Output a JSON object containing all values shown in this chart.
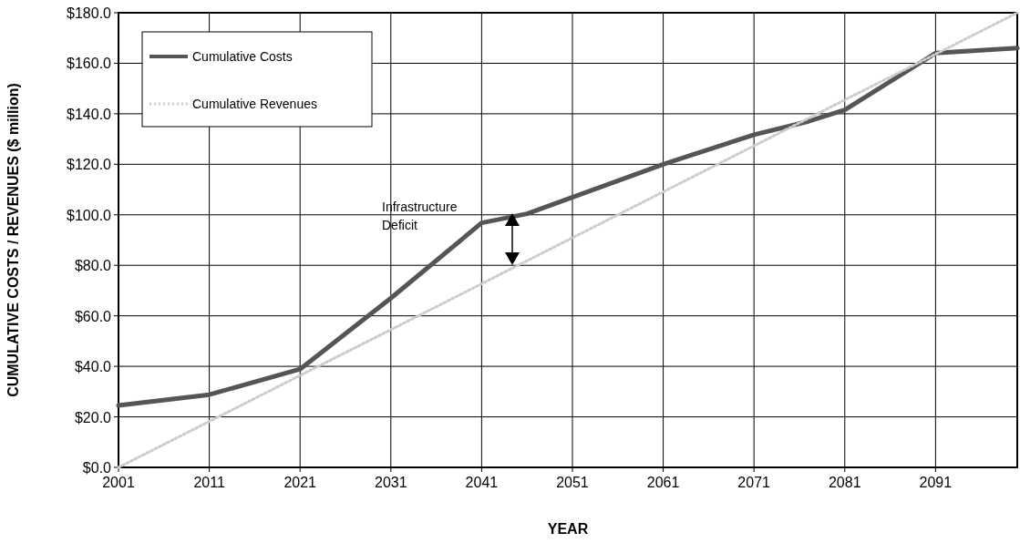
{
  "chart_data": {
    "type": "line",
    "xlabel": "YEAR",
    "ylabel": "CUMULATIVE COSTS / REVENUES ($ million)",
    "xlim": [
      2001,
      2100
    ],
    "xticks": [
      2001,
      2011,
      2021,
      2031,
      2041,
      2051,
      2061,
      2071,
      2081,
      2091
    ],
    "ylim": [
      0,
      180
    ],
    "yticks": [
      {
        "value": 0,
        "label": "$0.0"
      },
      {
        "value": 20,
        "label": "$20.0"
      },
      {
        "value": 40,
        "label": "$40.0"
      },
      {
        "value": 60,
        "label": "$60.0"
      },
      {
        "value": 80,
        "label": "$80.0"
      },
      {
        "value": 100,
        "label": "$100.0"
      },
      {
        "value": 120,
        "label": "$120.0"
      },
      {
        "value": 140,
        "label": "$140.0"
      },
      {
        "value": 160,
        "label": "$160.0"
      },
      {
        "value": 180,
        "label": "$180.0"
      }
    ],
    "grid": true,
    "legend": "top left",
    "marker": "none",
    "series": [
      {
        "name": "Cumulative Costs",
        "color": "#555555",
        "line_style": "solid",
        "x": [
          2001,
          2011,
          2021,
          2031,
          2041,
          2046,
          2061,
          2071,
          2077,
          2081,
          2091,
          2100
        ],
        "values": [
          24.5,
          28.8,
          38.9,
          67,
          96.8,
          100.4,
          120,
          131.7,
          137,
          141.5,
          164,
          166
        ]
      },
      {
        "name": "Cumulative Revenues",
        "color": "#cccccc",
        "line_style": "dotted",
        "x": [
          2001,
          2011,
          2021,
          2031,
          2041,
          2051,
          2061,
          2071,
          2081,
          2091,
          2100
        ],
        "values": [
          0,
          18.2,
          36.4,
          54.5,
          72.7,
          90.9,
          109.1,
          127.3,
          145.5,
          163.6,
          180
        ]
      }
    ],
    "annotations": [
      "Infrastructure Deficit"
    ]
  }
}
